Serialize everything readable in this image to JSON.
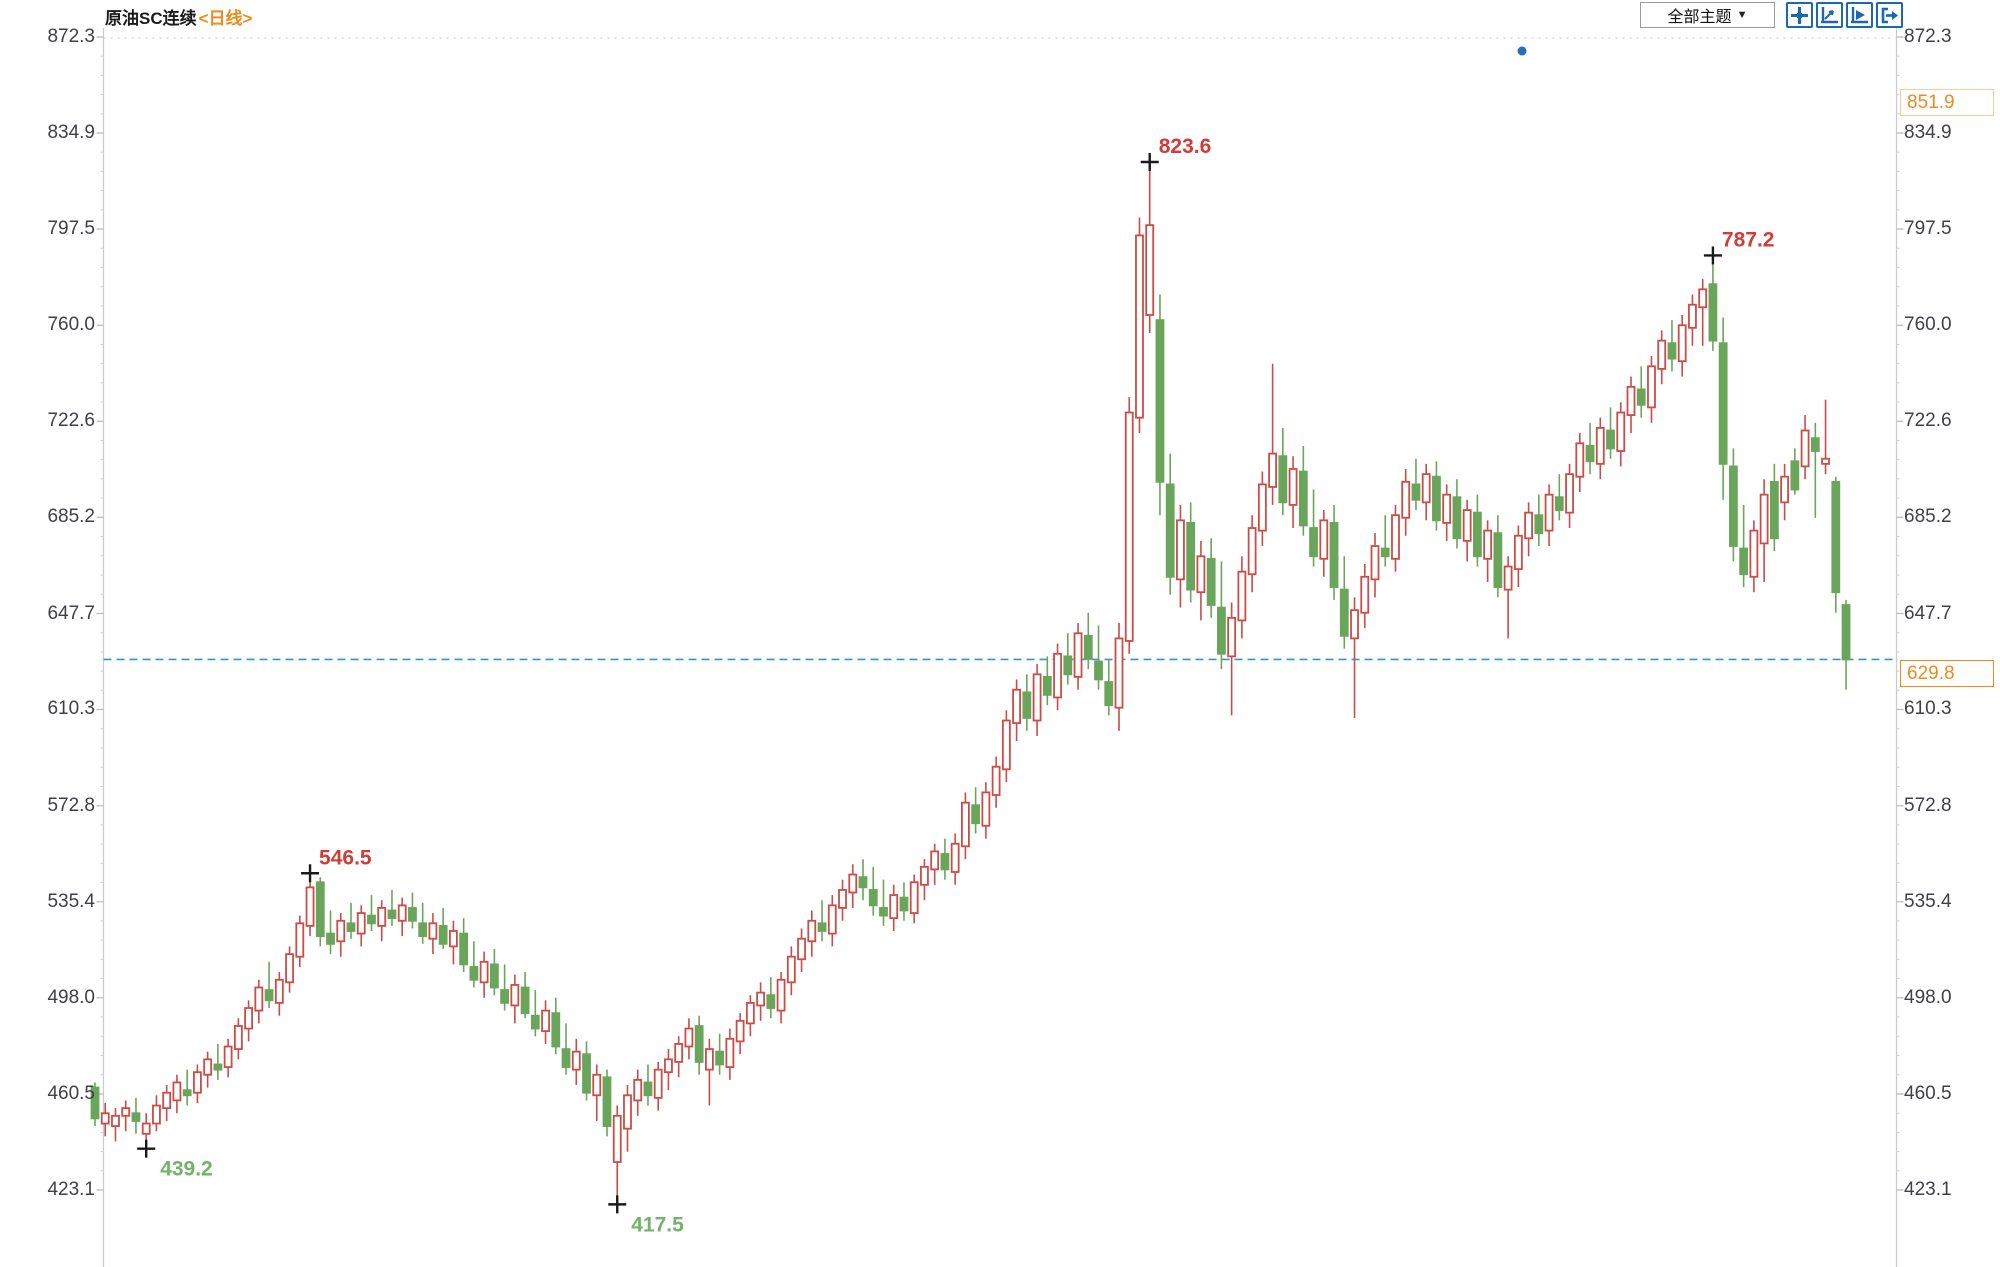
{
  "header": {
    "title": "原油SC连续",
    "period": "<日线>"
  },
  "toolbar": {
    "theme_button_label": "全部主题",
    "dropdown_arrow": "▼",
    "icons": [
      "move-crosshair-icon",
      "axis-range-icon",
      "axis-play-icon",
      "pan-right-icon"
    ]
  },
  "y_axis": {
    "tick_labels": [
      "872.3",
      "834.9",
      "797.5",
      "760.0",
      "722.6",
      "685.2",
      "647.7",
      "610.3",
      "572.8",
      "535.4",
      "498.0",
      "460.5",
      "423.1"
    ]
  },
  "price_tags": {
    "session_high": "851.9",
    "last_price": "629.8"
  },
  "colors": {
    "up_red": "#cc4b47",
    "down_green": "#6aa55c",
    "accent_orange": "#ef8b1d",
    "dashed_line_blue": "#3b8fd4",
    "toolbar_blue": "#1a68b0",
    "axis_text": "#3f3f49",
    "annotation_red": "#d13c39",
    "annotation_green": "#72b369",
    "marker_black": "#1a1a1a",
    "grid_gray": "#cfcfd4",
    "dot_blue": "#2272b9"
  },
  "chart_data": {
    "type": "candlestick",
    "title": "原油SC连续 日线",
    "y_range": [
      423.1,
      872.3
    ],
    "y_ticks": [
      872.3,
      834.9,
      797.5,
      760.0,
      722.6,
      685.2,
      647.7,
      610.3,
      572.8,
      535.4,
      498.0,
      460.5,
      423.1
    ],
    "grid": "top-dotted-line-only",
    "legend": "none",
    "price_line": 629.8,
    "session_high": 851.9,
    "annotations": [
      {
        "index": 5,
        "price": 439.2,
        "label": "439.2",
        "kind": "low"
      },
      {
        "index": 21,
        "price": 546.5,
        "label": "546.5",
        "kind": "high"
      },
      {
        "index": 51,
        "price": 417.5,
        "label": "417.5",
        "kind": "low"
      },
      {
        "index": 103,
        "price": 823.6,
        "label": "823.6",
        "kind": "high"
      },
      {
        "index": 158,
        "price": 787.2,
        "label": "787.2",
        "kind": "high"
      }
    ],
    "candles": [
      [
        463,
        465,
        448,
        451
      ],
      [
        449,
        457,
        444,
        453
      ],
      [
        448,
        455,
        442,
        452
      ],
      [
        452,
        458,
        446,
        455
      ],
      [
        453,
        459,
        445,
        450
      ],
      [
        445,
        453,
        439.2,
        449
      ],
      [
        449,
        460,
        446,
        456
      ],
      [
        455,
        464,
        450,
        461
      ],
      [
        458,
        468,
        453,
        465
      ],
      [
        462,
        470,
        456,
        460
      ],
      [
        461,
        472,
        457,
        469
      ],
      [
        468,
        477,
        463,
        474
      ],
      [
        472,
        480,
        466,
        470
      ],
      [
        471,
        482,
        467,
        479
      ],
      [
        478,
        490,
        474,
        487
      ],
      [
        486,
        497,
        481,
        494
      ],
      [
        493,
        505,
        488,
        502
      ],
      [
        501,
        512,
        494,
        497
      ],
      [
        496,
        508,
        491,
        505
      ],
      [
        504,
        518,
        500,
        515
      ],
      [
        514,
        530,
        510,
        527
      ],
      [
        526,
        546.5,
        522,
        541
      ],
      [
        543,
        545,
        518,
        522
      ],
      [
        523,
        532,
        515,
        519
      ],
      [
        520,
        531,
        514,
        528
      ],
      [
        527,
        535,
        521,
        524
      ],
      [
        523,
        534,
        518,
        531
      ],
      [
        530,
        538,
        524,
        527
      ],
      [
        526,
        536,
        520,
        533
      ],
      [
        532,
        540,
        526,
        529
      ],
      [
        528,
        537,
        522,
        534
      ],
      [
        533,
        539,
        525,
        528
      ],
      [
        527,
        535,
        519,
        522
      ],
      [
        521,
        531,
        515,
        527
      ],
      [
        526,
        533,
        517,
        519
      ],
      [
        518,
        528,
        511,
        524
      ],
      [
        523,
        529,
        508,
        511
      ],
      [
        510,
        520,
        502,
        505
      ],
      [
        504,
        516,
        498,
        512
      ],
      [
        511,
        517,
        499,
        502
      ],
      [
        501,
        511,
        493,
        496
      ],
      [
        495,
        507,
        488,
        503
      ],
      [
        502,
        508,
        490,
        492
      ],
      [
        491,
        501,
        483,
        486
      ],
      [
        485,
        497,
        480,
        493
      ],
      [
        492,
        498,
        476,
        479
      ],
      [
        478,
        488,
        468,
        471
      ],
      [
        470,
        482,
        464,
        477
      ],
      [
        476,
        481,
        458,
        461
      ],
      [
        460,
        472,
        450,
        468
      ],
      [
        467,
        470,
        444,
        448
      ],
      [
        434,
        456,
        417.5,
        452
      ],
      [
        447,
        464,
        438,
        460
      ],
      [
        458,
        470,
        452,
        466
      ],
      [
        465,
        472,
        456,
        460
      ],
      [
        459,
        473,
        454,
        470
      ],
      [
        469,
        478,
        462,
        474
      ],
      [
        473,
        483,
        467,
        480
      ],
      [
        479,
        490,
        474,
        486
      ],
      [
        487,
        491,
        468,
        473
      ],
      [
        470,
        482,
        456,
        478
      ],
      [
        477,
        484,
        468,
        472
      ],
      [
        471,
        486,
        466,
        482
      ],
      [
        481,
        492,
        476,
        489
      ],
      [
        488,
        499,
        483,
        496
      ],
      [
        495,
        504,
        489,
        500
      ],
      [
        499,
        506,
        490,
        494
      ],
      [
        493,
        508,
        488,
        505
      ],
      [
        504,
        518,
        499,
        514
      ],
      [
        513,
        525,
        508,
        521
      ],
      [
        520,
        532,
        514,
        528
      ],
      [
        527,
        536,
        520,
        524
      ],
      [
        523,
        538,
        518,
        534
      ],
      [
        533,
        544,
        528,
        540
      ],
      [
        539,
        550,
        533,
        546
      ],
      [
        545,
        552,
        536,
        541
      ],
      [
        540,
        549,
        530,
        534
      ],
      [
        533,
        544,
        526,
        530
      ],
      [
        529,
        542,
        524,
        538
      ],
      [
        537,
        543,
        528,
        532
      ],
      [
        531,
        546,
        527,
        543
      ],
      [
        542,
        552,
        536,
        549
      ],
      [
        548,
        558,
        542,
        555
      ],
      [
        554,
        560,
        544,
        548
      ],
      [
        547,
        562,
        542,
        558
      ],
      [
        557,
        578,
        552,
        574
      ],
      [
        573,
        580,
        562,
        566
      ],
      [
        565,
        582,
        560,
        578
      ],
      [
        577,
        592,
        572,
        588
      ],
      [
        587,
        610,
        582,
        606
      ],
      [
        605,
        622,
        598,
        618
      ],
      [
        617,
        624,
        602,
        607
      ],
      [
        606,
        628,
        600,
        624
      ],
      [
        623,
        631,
        612,
        616
      ],
      [
        615,
        636,
        610,
        632
      ],
      [
        631,
        640,
        620,
        624
      ],
      [
        623,
        644,
        618,
        640
      ],
      [
        639,
        648,
        626,
        630
      ],
      [
        629,
        643,
        618,
        622
      ],
      [
        621,
        630,
        608,
        612
      ],
      [
        611,
        644,
        602,
        638
      ],
      [
        637,
        732,
        632,
        726
      ],
      [
        724,
        802,
        718,
        795
      ],
      [
        764,
        823.6,
        757,
        799
      ],
      [
        762,
        772,
        686,
        699
      ],
      [
        698,
        710,
        655,
        662
      ],
      [
        661,
        690,
        650,
        684
      ],
      [
        683,
        691,
        652,
        657
      ],
      [
        656,
        676,
        645,
        670
      ],
      [
        669,
        677,
        646,
        651
      ],
      [
        650,
        668,
        626,
        632
      ],
      [
        631,
        652,
        608,
        646
      ],
      [
        645,
        670,
        638,
        664
      ],
      [
        663,
        686,
        656,
        681
      ],
      [
        680,
        703,
        674,
        698
      ],
      [
        697,
        745,
        690,
        710
      ],
      [
        709,
        720,
        686,
        691
      ],
      [
        690,
        709,
        681,
        704
      ],
      [
        703,
        713,
        678,
        682
      ],
      [
        681,
        696,
        666,
        670
      ],
      [
        669,
        688,
        662,
        684
      ],
      [
        683,
        690,
        653,
        658
      ],
      [
        657,
        670,
        634,
        639
      ],
      [
        638,
        654,
        607,
        649
      ],
      [
        648,
        667,
        642,
        662
      ],
      [
        661,
        679,
        654,
        674
      ],
      [
        673,
        686,
        666,
        670
      ],
      [
        669,
        690,
        664,
        686
      ],
      [
        685,
        704,
        678,
        699
      ],
      [
        698,
        708,
        688,
        692
      ],
      [
        691,
        706,
        684,
        702
      ],
      [
        701,
        707,
        680,
        684
      ],
      [
        683,
        698,
        676,
        694
      ],
      [
        693,
        700,
        673,
        677
      ],
      [
        676,
        692,
        668,
        688
      ],
      [
        687,
        694,
        666,
        670
      ],
      [
        669,
        684,
        660,
        680
      ],
      [
        679,
        686,
        654,
        658
      ],
      [
        657,
        670,
        638,
        666
      ],
      [
        665,
        682,
        658,
        678
      ],
      [
        677,
        691,
        670,
        687
      ],
      [
        686,
        694,
        674,
        679
      ],
      [
        680,
        698,
        674,
        694
      ],
      [
        693,
        702,
        684,
        688
      ],
      [
        687,
        706,
        681,
        702
      ],
      [
        701,
        718,
        695,
        714
      ],
      [
        713,
        722,
        702,
        707
      ],
      [
        706,
        724,
        700,
        720
      ],
      [
        719,
        728,
        708,
        712
      ],
      [
        711,
        730,
        705,
        726
      ],
      [
        725,
        740,
        718,
        736
      ],
      [
        735,
        744,
        724,
        729
      ],
      [
        728,
        748,
        722,
        744
      ],
      [
        743,
        758,
        737,
        754
      ],
      [
        753,
        762,
        742,
        747
      ],
      [
        746,
        764,
        740,
        760
      ],
      [
        759,
        772,
        752,
        768
      ],
      [
        767,
        778,
        752,
        774
      ],
      [
        776,
        787.2,
        750,
        754
      ],
      [
        753,
        763,
        692,
        706
      ],
      [
        705,
        712,
        668,
        674
      ],
      [
        673,
        690,
        658,
        663
      ],
      [
        662,
        684,
        656,
        680
      ],
      [
        675,
        700,
        660,
        694
      ],
      [
        699,
        706,
        672,
        677
      ],
      [
        691,
        706,
        684,
        701
      ],
      [
        707,
        712,
        694,
        696
      ],
      [
        705,
        725,
        700,
        719
      ],
      [
        716,
        722,
        685,
        711
      ],
      [
        706,
        731,
        702,
        708
      ],
      [
        699,
        701,
        648,
        656
      ],
      [
        651,
        653,
        618,
        629.8
      ]
    ]
  }
}
